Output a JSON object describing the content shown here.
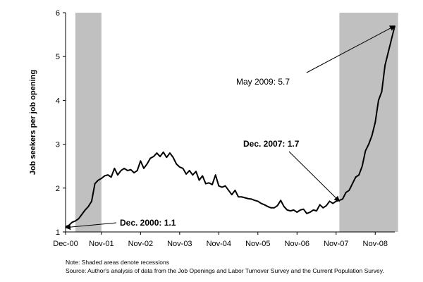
{
  "chart_data": {
    "type": "line",
    "title": "",
    "xlabel": "",
    "ylabel": "Job seekers per job opening",
    "ylim": [
      1,
      6
    ],
    "yticks": [
      "1",
      "2",
      "3",
      "4",
      "5",
      "6"
    ],
    "xticks": [
      "Dec-00",
      "Nov-01",
      "Nov-02",
      "Nov-03",
      "Nov-04",
      "Nov-05",
      "Nov-06",
      "Nov-07",
      "Nov-08"
    ],
    "recessions": [
      {
        "start_month_index": 3,
        "end_month_index": 11
      },
      {
        "start_month_index": 84,
        "end_month_index": 102
      }
    ],
    "series": [
      {
        "values": [
          1.12,
          1.15,
          1.22,
          1.25,
          1.3,
          1.4,
          1.5,
          1.58,
          1.7,
          2.1,
          2.18,
          2.22,
          2.28,
          2.3,
          2.25,
          2.45,
          2.3,
          2.4,
          2.45,
          2.4,
          2.42,
          2.35,
          2.4,
          2.62,
          2.45,
          2.55,
          2.68,
          2.72,
          2.8,
          2.72,
          2.82,
          2.7,
          2.8,
          2.7,
          2.55,
          2.48,
          2.45,
          2.32,
          2.4,
          2.3,
          2.38,
          2.18,
          2.28,
          2.1,
          2.12,
          2.08,
          2.3,
          2.05,
          2.02,
          2.05,
          1.95,
          1.85,
          1.95,
          1.8,
          1.8,
          1.78,
          1.76,
          1.75,
          1.72,
          1.7,
          1.65,
          1.62,
          1.58,
          1.55,
          1.55,
          1.6,
          1.72,
          1.58,
          1.5,
          1.48,
          1.5,
          1.45,
          1.5,
          1.52,
          1.42,
          1.45,
          1.5,
          1.48,
          1.62,
          1.55,
          1.6,
          1.7,
          1.65,
          1.7,
          1.72,
          1.75,
          1.9,
          1.95,
          2.1,
          2.25,
          2.3,
          2.5,
          2.85,
          3.0,
          3.2,
          3.5,
          4.0,
          4.2,
          4.8,
          5.1,
          5.4,
          5.7
        ]
      }
    ],
    "annotations": [
      {
        "text": "Dec. 2000: 1.1",
        "bold": true,
        "month_index": 0,
        "value": 1.1
      },
      {
        "text": "Dec. 2007: 1.7",
        "bold": true,
        "month_index": 84,
        "value": 1.7
      },
      {
        "text": "May 2009: 5.7",
        "bold": false,
        "month_index": 101,
        "value": 5.7
      }
    ]
  },
  "footer": {
    "note": "Note: Shaded areas denote recessions",
    "source": "Source: Author's analysis of data from the Job Openings and Labor Turnover Survey and the Current Population Survey."
  }
}
